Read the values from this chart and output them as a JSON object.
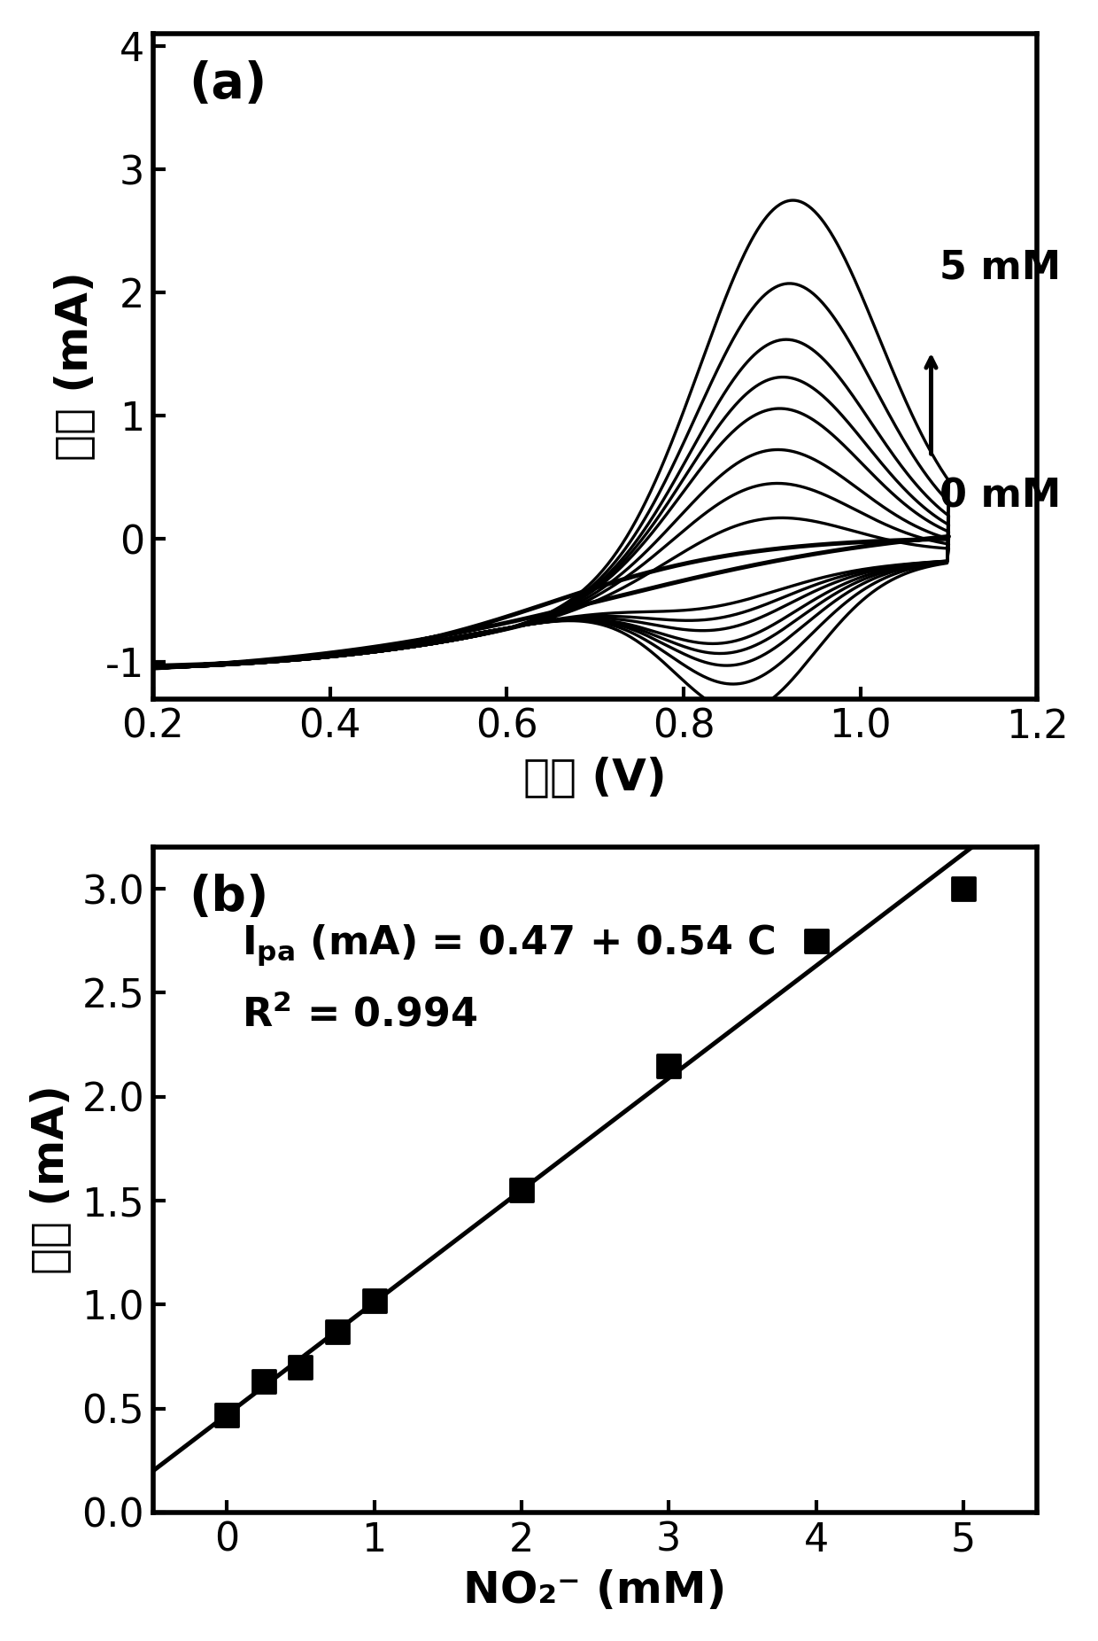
{
  "panel_a": {
    "xlabel": "电位 (V)",
    "ylabel": "电流 (mA)",
    "label": "(a)",
    "xlim": [
      0.2,
      1.2
    ],
    "ylim": [
      -1.3,
      4.1
    ],
    "xticks": [
      0.2,
      0.4,
      0.6,
      0.8,
      1.0,
      1.2
    ],
    "yticks": [
      -1,
      0,
      1,
      2,
      3,
      4
    ],
    "label_5mM": "5 mM",
    "label_0mM": "0 mM",
    "cv_peak_currents": [
      0.0,
      0.47,
      0.75,
      1.02,
      1.35,
      1.6,
      1.9,
      2.35,
      3.02
    ]
  },
  "panel_b": {
    "xlabel": "NO₂⁻ (mM)",
    "ylabel": "电流 (mA)",
    "label": "(b)",
    "xlim": [
      -0.5,
      5.5
    ],
    "ylim": [
      0.0,
      3.2
    ],
    "xticks": [
      0,
      1,
      2,
      3,
      4,
      5
    ],
    "yticks": [
      0.0,
      0.5,
      1.0,
      1.5,
      2.0,
      2.5,
      3.0
    ],
    "scatter_x": [
      0.0,
      0.25,
      0.5,
      0.75,
      1.0,
      2.0,
      3.0,
      4.0,
      5.0
    ],
    "scatter_y": [
      0.47,
      0.63,
      0.7,
      0.87,
      1.02,
      1.55,
      2.15,
      2.75,
      3.0
    ],
    "fit_intercept": 0.47,
    "fit_slope": 0.54
  },
  "bg_color": "#ffffff",
  "line_color": "#000000",
  "font_size_label": 18,
  "font_size_tick": 16,
  "font_size_annotation": 16,
  "font_size_panel_label": 20
}
